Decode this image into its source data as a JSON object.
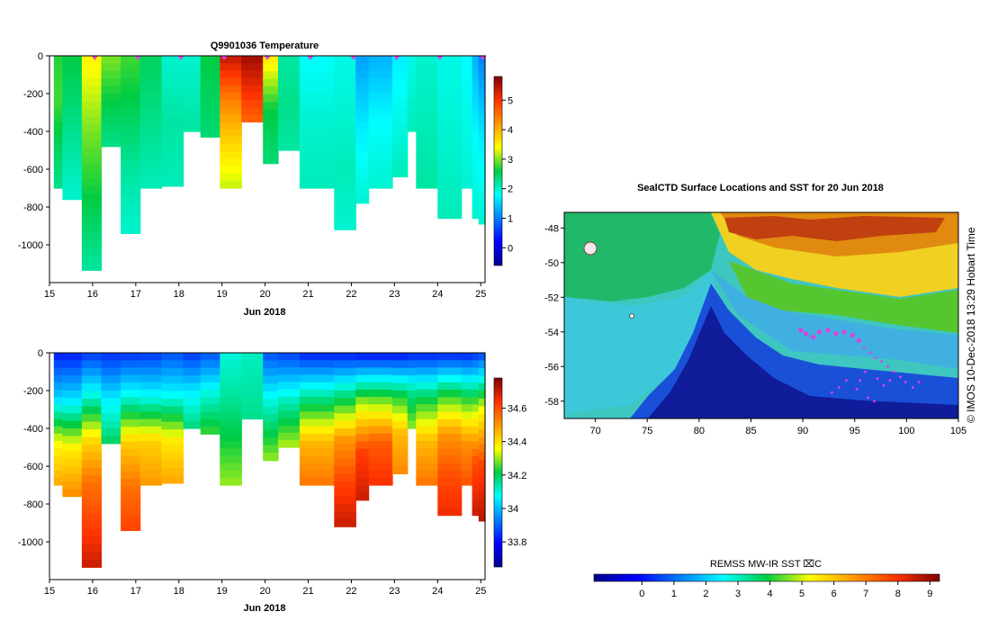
{
  "chart_data": [
    {
      "type": "heatmap",
      "name": "temperature-section",
      "title": "Q9901036  Temperature",
      "xlabel": "Jun 2018",
      "x_ticks": [
        "15",
        "16",
        "17",
        "18",
        "19",
        "20",
        "21",
        "22",
        "23",
        "24",
        "25"
      ],
      "xlim": [
        15,
        25.1
      ],
      "y_ticks": [
        "0",
        "-200",
        "-400",
        "-600",
        "-800",
        "-1000"
      ],
      "ylim": [
        -1200,
        0
      ],
      "colorbar_ticks": [
        "0",
        "1",
        "2",
        "3",
        "4",
        "5"
      ],
      "colorbar_range": [
        -0.6,
        5.8
      ],
      "profile_markers_x": [
        16.05,
        17.05,
        18.05,
        19.05,
        20.05,
        21.05,
        22.05,
        23.05,
        24.05,
        25.05
      ],
      "profiles": [
        {
          "x0": 15.1,
          "x1": 15.3,
          "depth": 700,
          "values": [
            2.7,
            2.8,
            2.5,
            2.3
          ]
        },
        {
          "x0": 15.3,
          "x1": 15.75,
          "depth": 760,
          "values": [
            2.6,
            2.4,
            2.2,
            2.0
          ]
        },
        {
          "x0": 15.75,
          "x1": 16.2,
          "depth": 1135,
          "values": [
            3.5,
            3.0,
            2.6,
            2.2
          ]
        },
        {
          "x0": 16.2,
          "x1": 16.65,
          "depth": 480,
          "values": [
            3.0,
            2.6,
            2.3
          ]
        },
        {
          "x0": 16.65,
          "x1": 17.1,
          "depth": 940,
          "values": [
            2.8,
            2.5,
            2.2,
            2.0
          ]
        },
        {
          "x0": 17.1,
          "x1": 17.6,
          "depth": 700,
          "values": [
            2.5,
            2.3,
            2.1
          ]
        },
        {
          "x0": 17.6,
          "x1": 18.1,
          "depth": 690,
          "values": [
            2.0,
            2.2,
            2.1
          ]
        },
        {
          "x0": 18.1,
          "x1": 18.5,
          "depth": 400,
          "values": [
            2.0,
            2.2
          ]
        },
        {
          "x0": 18.5,
          "x1": 18.95,
          "depth": 430,
          "values": [
            2.6,
            2.4
          ]
        },
        {
          "x0": 18.95,
          "x1": 19.45,
          "depth": 700,
          "values": [
            5.4,
            4.4,
            3.7,
            3.2
          ]
        },
        {
          "x0": 19.45,
          "x1": 19.95,
          "depth": 350,
          "values": [
            5.6,
            4.6
          ]
        },
        {
          "x0": 19.95,
          "x1": 20.3,
          "depth": 570,
          "values": [
            3.6,
            2.6,
            2.4
          ]
        },
        {
          "x0": 20.3,
          "x1": 20.8,
          "depth": 500,
          "values": [
            2.2,
            2.3,
            2.2
          ]
        },
        {
          "x0": 20.8,
          "x1": 21.6,
          "depth": 700,
          "values": [
            1.8,
            2.0,
            2.1
          ]
        },
        {
          "x0": 21.6,
          "x1": 22.1,
          "depth": 920,
          "values": [
            1.9,
            2.0,
            2.1,
            2.0
          ]
        },
        {
          "x0": 22.1,
          "x1": 22.4,
          "depth": 780,
          "values": [
            1.2,
            1.7,
            2.0
          ]
        },
        {
          "x0": 22.4,
          "x1": 22.95,
          "depth": 700,
          "values": [
            1.3,
            1.8,
            2.0
          ]
        },
        {
          "x0": 22.95,
          "x1": 23.3,
          "depth": 640,
          "values": [
            1.7,
            1.9,
            2.1
          ]
        },
        {
          "x0": 23.3,
          "x1": 23.5,
          "depth": 400,
          "values": [
            1.9,
            2.1
          ]
        },
        {
          "x0": 23.5,
          "x1": 24.0,
          "depth": 700,
          "values": [
            2.0,
            2.1,
            2.2
          ]
        },
        {
          "x0": 24.0,
          "x1": 24.55,
          "depth": 860,
          "values": [
            1.9,
            2.0,
            2.1
          ]
        },
        {
          "x0": 24.55,
          "x1": 24.8,
          "depth": 700,
          "values": [
            1.8,
            2.0
          ]
        },
        {
          "x0": 24.8,
          "x1": 24.95,
          "depth": 860,
          "values": [
            1.3,
            1.8,
            2.0
          ]
        },
        {
          "x0": 24.95,
          "x1": 25.1,
          "depth": 890,
          "values": [
            1.0,
            1.7,
            2.0
          ]
        }
      ]
    },
    {
      "type": "heatmap",
      "name": "salinity-section",
      "xlabel": "Jun 2018",
      "x_ticks": [
        "15",
        "16",
        "17",
        "18",
        "19",
        "20",
        "21",
        "22",
        "23",
        "24",
        "25"
      ],
      "xlim": [
        15,
        25.1
      ],
      "y_ticks": [
        "0",
        "-200",
        "-400",
        "-600",
        "-800",
        "-1000"
      ],
      "ylim": [
        -1200,
        0
      ],
      "colorbar_ticks": [
        "33.8",
        "34",
        "34.2",
        "34.4",
        "34.6"
      ],
      "colorbar_range": [
        33.65,
        34.78
      ],
      "profiles": [
        {
          "x0": 15.1,
          "x1": 15.3,
          "depth": 700,
          "values": [
            33.82,
            34.02,
            34.35,
            34.48
          ]
        },
        {
          "x0": 15.3,
          "x1": 15.75,
          "depth": 760,
          "values": [
            33.82,
            34.05,
            34.38,
            34.52
          ]
        },
        {
          "x0": 15.75,
          "x1": 16.2,
          "depth": 1135,
          "values": [
            33.85,
            34.1,
            34.4,
            34.55,
            34.62,
            34.7
          ]
        },
        {
          "x0": 16.2,
          "x1": 16.65,
          "depth": 480,
          "values": [
            33.84,
            34.05,
            34.2
          ]
        },
        {
          "x0": 16.65,
          "x1": 17.1,
          "depth": 940,
          "values": [
            33.84,
            34.1,
            34.42,
            34.55,
            34.62
          ]
        },
        {
          "x0": 17.1,
          "x1": 17.6,
          "depth": 700,
          "values": [
            33.85,
            34.08,
            34.42,
            34.5
          ]
        },
        {
          "x0": 17.6,
          "x1": 18.1,
          "depth": 690,
          "values": [
            33.88,
            34.08,
            34.38,
            34.48
          ]
        },
        {
          "x0": 18.1,
          "x1": 18.5,
          "depth": 400,
          "values": [
            33.85,
            34.05,
            34.18
          ]
        },
        {
          "x0": 18.5,
          "x1": 18.95,
          "depth": 430,
          "values": [
            33.88,
            34.1,
            34.25
          ]
        },
        {
          "x0": 18.95,
          "x1": 19.45,
          "depth": 700,
          "values": [
            34.1,
            34.15,
            34.22,
            34.3
          ]
        },
        {
          "x0": 19.45,
          "x1": 19.95,
          "depth": 350,
          "values": [
            34.12,
            34.16
          ]
        },
        {
          "x0": 19.95,
          "x1": 20.3,
          "depth": 570,
          "values": [
            33.88,
            34.12,
            34.3
          ]
        },
        {
          "x0": 20.3,
          "x1": 20.8,
          "depth": 500,
          "values": [
            33.86,
            34.12,
            34.32
          ]
        },
        {
          "x0": 20.8,
          "x1": 21.6,
          "depth": 700,
          "values": [
            33.82,
            34.15,
            34.45,
            34.55
          ]
        },
        {
          "x0": 21.6,
          "x1": 22.1,
          "depth": 920,
          "values": [
            33.82,
            34.18,
            34.5,
            34.62,
            34.7
          ]
        },
        {
          "x0": 22.1,
          "x1": 22.4,
          "depth": 780,
          "values": [
            33.8,
            34.3,
            34.62,
            34.7
          ]
        },
        {
          "x0": 22.4,
          "x1": 22.95,
          "depth": 700,
          "values": [
            33.8,
            34.25,
            34.58,
            34.65
          ]
        },
        {
          "x0": 22.95,
          "x1": 23.3,
          "depth": 640,
          "values": [
            33.8,
            34.2,
            34.45,
            34.52
          ]
        },
        {
          "x0": 23.3,
          "x1": 23.5,
          "depth": 400,
          "values": [
            33.82,
            34.15,
            34.3
          ]
        },
        {
          "x0": 23.5,
          "x1": 24.0,
          "depth": 700,
          "values": [
            33.82,
            34.2,
            34.45,
            34.55
          ]
        },
        {
          "x0": 24.0,
          "x1": 24.55,
          "depth": 860,
          "values": [
            33.82,
            34.22,
            34.5,
            34.6,
            34.66
          ]
        },
        {
          "x0": 24.55,
          "x1": 24.8,
          "depth": 700,
          "values": [
            33.82,
            34.22,
            34.5,
            34.6
          ]
        },
        {
          "x0": 24.8,
          "x1": 24.95,
          "depth": 860,
          "values": [
            33.84,
            34.3,
            34.6,
            34.7
          ]
        },
        {
          "x0": 24.95,
          "x1": 25.1,
          "depth": 890,
          "values": [
            33.86,
            34.35,
            34.62,
            34.72
          ]
        }
      ]
    },
    {
      "type": "heatmap",
      "name": "sst-map",
      "title": "SealCTD Surface Locations and SST for 20 Jun 2018",
      "x_ticks": [
        "70",
        "75",
        "80",
        "85",
        "90",
        "95",
        "100",
        "105"
      ],
      "xlim": [
        67,
        105
      ],
      "y_ticks": [
        "-48",
        "-50",
        "-52",
        "-54",
        "-56",
        "-58"
      ],
      "ylim": [
        -59,
        -47.1
      ],
      "colorbar_label": "REMSS MW-IR SST ⌧C",
      "colorbar_ticks": [
        "0",
        "1",
        "2",
        "3",
        "4",
        "5",
        "6",
        "7",
        "8",
        "9"
      ],
      "colorbar_range": [
        -1.5,
        9.3
      ],
      "side_label": "©  IMOS 10-Dec-2018 13:29 Hobart Time",
      "track_points": [
        {
          "lon": 89.8,
          "lat": -53.9
        },
        {
          "lon": 90.3,
          "lat": -54.1
        },
        {
          "lon": 91.0,
          "lat": -54.3
        },
        {
          "lon": 91.6,
          "lat": -54.0
        },
        {
          "lon": 92.4,
          "lat": -53.9
        },
        {
          "lon": 93.2,
          "lat": -54.1
        },
        {
          "lon": 94.0,
          "lat": -54.0
        },
        {
          "lon": 94.8,
          "lat": -54.2
        },
        {
          "lon": 95.4,
          "lat": -54.5
        },
        {
          "lon": 95.9,
          "lat": -54.9
        },
        {
          "lon": 96.5,
          "lat": -55.2
        },
        {
          "lon": 97.0,
          "lat": -55.5
        },
        {
          "lon": 97.6,
          "lat": -55.7
        },
        {
          "lon": 98.2,
          "lat": -56.0
        },
        {
          "lon": 98.8,
          "lat": -56.3
        },
        {
          "lon": 99.4,
          "lat": -56.6
        },
        {
          "lon": 99.9,
          "lat": -56.9
        },
        {
          "lon": 96.0,
          "lat": -56.3
        },
        {
          "lon": 95.5,
          "lat": -56.8
        },
        {
          "lon": 95.2,
          "lat": -57.3
        },
        {
          "lon": 96.3,
          "lat": -57.8
        },
        {
          "lon": 94.2,
          "lat": -56.8
        },
        {
          "lon": 93.5,
          "lat": -57.2
        },
        {
          "lon": 92.8,
          "lat": -57.5
        },
        {
          "lon": 97.2,
          "lat": -56.7
        },
        {
          "lon": 97.8,
          "lat": -57.1
        },
        {
          "lon": 98.4,
          "lat": -56.8
        },
        {
          "lon": 100.6,
          "lat": -57.2
        },
        {
          "lon": 101.2,
          "lat": -56.9
        },
        {
          "lon": 96.9,
          "lat": -58.0
        }
      ]
    }
  ],
  "colors": {
    "background": "#ffffff",
    "axis": "#000000",
    "marker": "#e040e0"
  }
}
